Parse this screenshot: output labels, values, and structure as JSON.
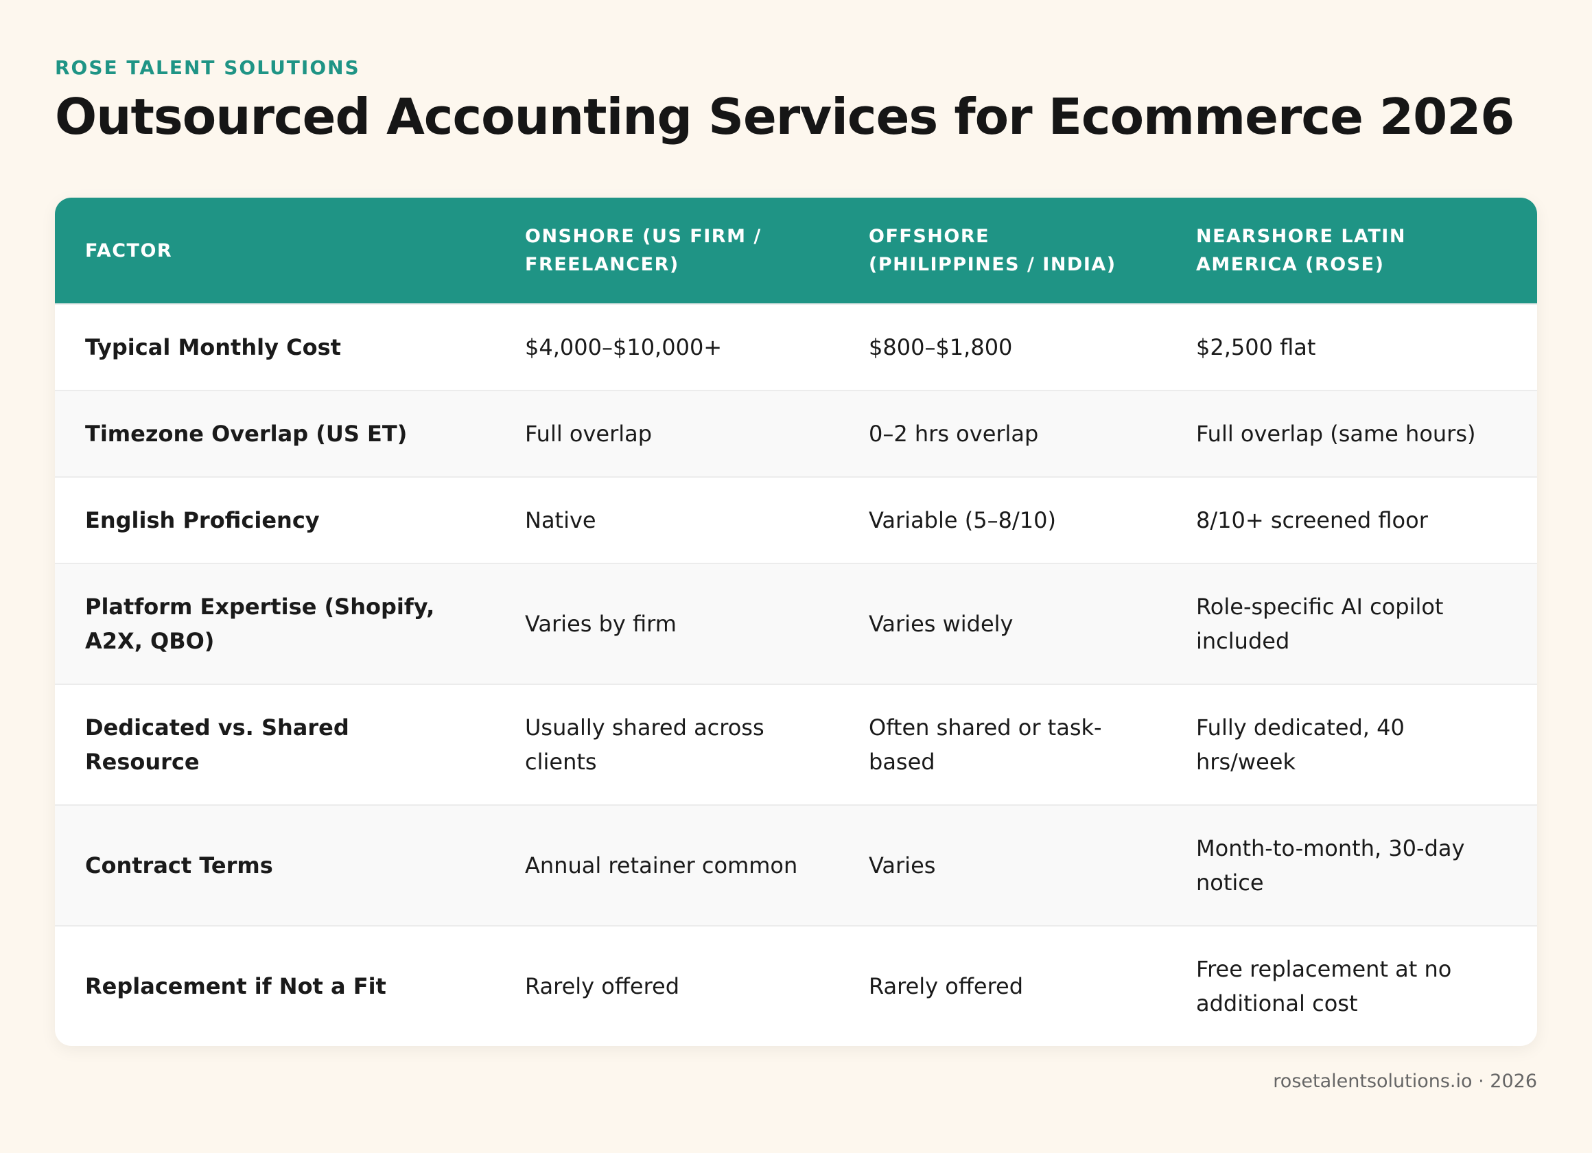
{
  "brand": "ROSE TALENT SOLUTIONS",
  "title": "Outsourced Accounting Services for Ecommerce 2026",
  "table": {
    "headers": [
      "FACTOR",
      "ONSHORE (US FIRM / FREELANCER)",
      "OFFSHORE (PHILIPPINES / INDIA)",
      "NEARSHORE LATIN AMERICA (ROSE)"
    ],
    "rows": [
      [
        "Typical Monthly Cost",
        "$4,000–$10,000+",
        "$800–$1,800",
        "$2,500 flat"
      ],
      [
        "Timezone Overlap (US ET)",
        "Full overlap",
        "0–2 hrs overlap",
        "Full overlap (same hours)"
      ],
      [
        "English Proficiency",
        "Native",
        "Variable (5–8/10)",
        "8/10+ screened floor"
      ],
      [
        "Platform Expertise (Shopify, A2X, QBO)",
        "Varies by firm",
        "Varies widely",
        "Role-specific AI copilot included"
      ],
      [
        "Dedicated vs. Shared Resource",
        "Usually shared across clients",
        "Often shared or task-based",
        "Fully dedicated, 40 hrs/week"
      ],
      [
        "Contract Terms",
        "Annual retainer common",
        "Varies",
        "Month-to-month, 30-day notice"
      ],
      [
        "Replacement if Not a Fit",
        "Rarely offered",
        "Rarely offered",
        "Free replacement at no additional cost"
      ]
    ]
  },
  "footer": "rosetalentsolutions.io · 2026"
}
